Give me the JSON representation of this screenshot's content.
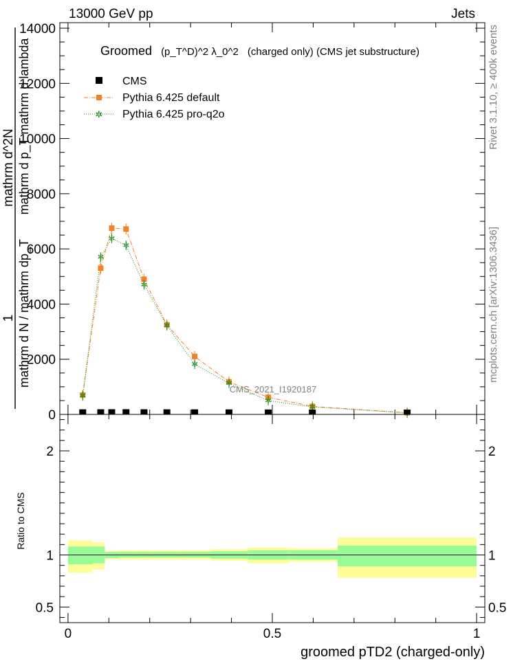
{
  "header": {
    "energy": "13000 GeV pp",
    "category": "Jets"
  },
  "side": {
    "rivet": "Rivet 3.1.10, ≥ 400k events",
    "site": "mcplots.cern.ch [arXiv:1306.3436]"
  },
  "chart_data": [
    {
      "type": "line",
      "title": "Groomed",
      "title_formula": "(p_T^D)^2 λ_0^2",
      "title_suffix": "(charged only) (CMS jet substructure)",
      "watermark": "CMS_2021_I1920187",
      "ylabel_frac_left": "1",
      "ylabel_frac_num": "mathrm d^2N",
      "ylabel_frac_den": "mathrm d p_T mathrm d lambda",
      "ylabel_main": "mathrm d N / mathrm dp_T",
      "xlim": [
        -0.02,
        1.02
      ],
      "ylim": [
        0,
        14200
      ],
      "yticks": [
        {
          "v": 0,
          "label": "0"
        },
        {
          "v": 2000,
          "label": "2000"
        },
        {
          "v": 4000,
          "label": "4000"
        },
        {
          "v": 6000,
          "label": "6000"
        },
        {
          "v": 8000,
          "label": "8000"
        },
        {
          "v": 10000,
          "label": "10000"
        },
        {
          "v": 12000,
          "label": "12000"
        },
        {
          "v": 14000,
          "label": "14000"
        }
      ],
      "legend_position": "top-left",
      "series": [
        {
          "name": "CMS",
          "color": "#000000",
          "marker": "square",
          "x": [
            0.036,
            0.08,
            0.107,
            0.142,
            0.186,
            0.242,
            0.31,
            0.394,
            0.49,
            0.598,
            0.83
          ],
          "y": [
            10,
            12,
            14,
            14,
            12,
            10,
            9,
            7,
            5,
            3,
            1
          ]
        },
        {
          "name": "Pythia 6.425 default",
          "color": "#f4812a",
          "marker": "square",
          "x": [
            0.036,
            0.08,
            0.107,
            0.142,
            0.186,
            0.242,
            0.31,
            0.394,
            0.49,
            0.598,
            0.83
          ],
          "y": [
            700,
            5300,
            6750,
            6720,
            4900,
            3250,
            2100,
            1180,
            620,
            290,
            60
          ]
        },
        {
          "name": "Pythia 6.425 pro-q2o",
          "color": "#138a13",
          "marker": "star",
          "x": [
            0.036,
            0.08,
            0.107,
            0.142,
            0.186,
            0.242,
            0.31,
            0.394,
            0.49,
            0.598,
            0.83
          ],
          "y": [
            680,
            5700,
            6380,
            6130,
            4700,
            3220,
            1820,
            1130,
            500,
            270,
            55
          ]
        }
      ]
    },
    {
      "type": "area",
      "ylabel": "Ratio to CMS",
      "xlabel": "groomed pTD2 (charged-only)",
      "xlim": [
        -0.02,
        1.02
      ],
      "ylim": [
        0.35,
        2.35
      ],
      "xticks": [
        {
          "v": 0,
          "label": "0"
        },
        {
          "v": 0.5,
          "label": "0.5"
        },
        {
          "v": 1,
          "label": "1"
        }
      ],
      "yticks": [
        {
          "v": 0.5,
          "label": "0.5"
        },
        {
          "v": 1,
          "label": "1"
        },
        {
          "v": 2,
          "label": "2"
        }
      ],
      "reference_line": 1,
      "bands": {
        "edges": [
          0,
          0.06,
          0.09,
          0.125,
          0.16,
          0.21,
          0.275,
          0.35,
          0.44,
          0.54,
          0.66,
          1.0
        ],
        "inner_lo": [
          0.91,
          0.92,
          0.97,
          0.975,
          0.975,
          0.975,
          0.975,
          0.965,
          0.955,
          0.955,
          0.89
        ],
        "inner_hi": [
          1.08,
          1.08,
          1.03,
          1.03,
          1.03,
          1.03,
          1.03,
          1.035,
          1.045,
          1.045,
          1.09
        ],
        "outer_lo": [
          0.83,
          0.86,
          0.96,
          0.955,
          0.955,
          0.955,
          0.955,
          0.945,
          0.92,
          0.935,
          0.78
        ],
        "outer_hi": [
          1.14,
          1.12,
          1.04,
          1.045,
          1.045,
          1.045,
          1.045,
          1.055,
          1.07,
          1.065,
          1.17
        ],
        "inner_color": "#99fb98",
        "outer_color": "#fefe99"
      }
    }
  ]
}
